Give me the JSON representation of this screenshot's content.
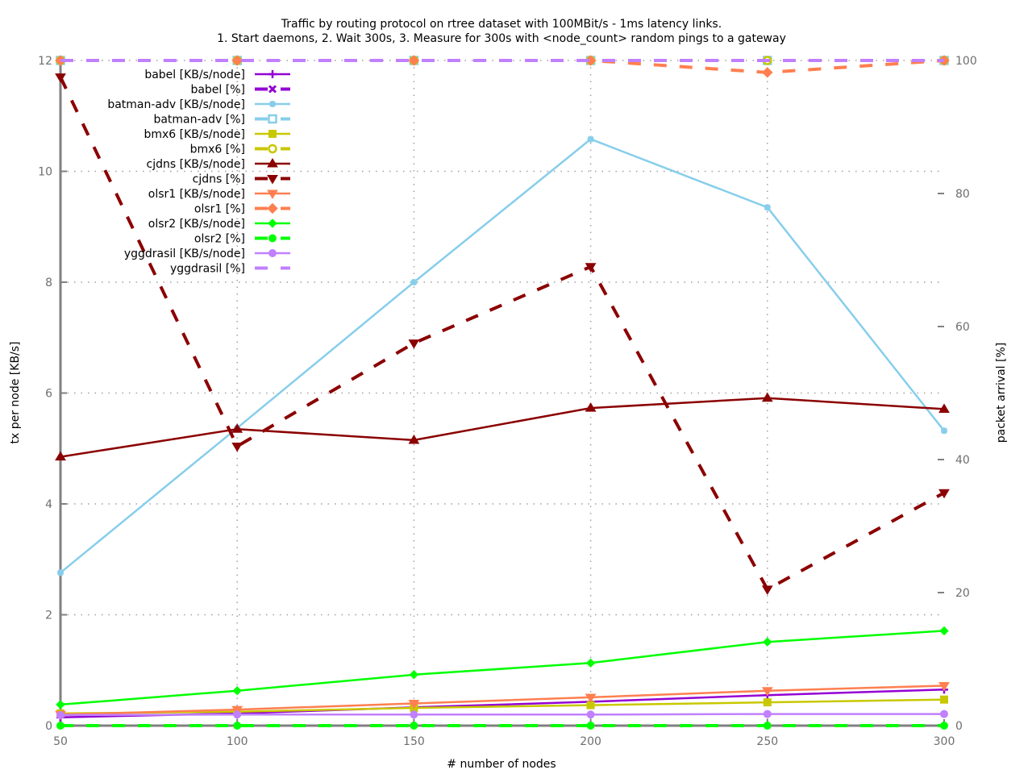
{
  "chart_data": {
    "type": "line",
    "title": "Traffic by routing protocol on rtree dataset with 100MBit/s - 1ms latency links.",
    "subtitle": "1. Start daemons, 2. Wait 300s, 3. Measure for 300s with <node_count> random pings to a gateway",
    "xlabel": "# number of nodes",
    "ylabel": "tx per node [KB/s]",
    "y2label": "packet arrival [%]",
    "xlim": [
      50,
      300
    ],
    "ylim": [
      0,
      12
    ],
    "y2lim": [
      0,
      100
    ],
    "x_ticks": [
      50,
      100,
      150,
      200,
      250,
      300
    ],
    "y_ticks": [
      0,
      2,
      4,
      6,
      8,
      10,
      12
    ],
    "y2_ticks": [
      0,
      20,
      40,
      60,
      80,
      100
    ],
    "grid": true,
    "legend_position": "top-left",
    "x": [
      50,
      100,
      150,
      200,
      250,
      300
    ],
    "series": [
      {
        "name": "babel [KB/s/node]",
        "axis": "y",
        "color": "#9400d3",
        "dash": false,
        "marker": "plus",
        "values": [
          0.15,
          0.22,
          0.33,
          0.43,
          0.55,
          0.65
        ]
      },
      {
        "name": "babel [%]",
        "axis": "y2",
        "color": "#9400d3",
        "dash": true,
        "marker": "x",
        "values": [
          100,
          100,
          100,
          100,
          100,
          100
        ]
      },
      {
        "name": "batman-adv [KB/s/node]",
        "axis": "y",
        "color": "#87ceeb",
        "dash": false,
        "marker": "star",
        "values": [
          2.76,
          5.37,
          8.0,
          10.58,
          9.35,
          5.32
        ]
      },
      {
        "name": "batman-adv [%]",
        "axis": "y2",
        "color": "#87ceeb",
        "dash": true,
        "marker": "box",
        "values": [
          100,
          100,
          100,
          100,
          100,
          100
        ]
      },
      {
        "name": "bmx6 [KB/s/node]",
        "axis": "y",
        "color": "#c8c800",
        "dash": false,
        "marker": "fbox",
        "values": [
          0.22,
          0.25,
          0.32,
          0.37,
          0.42,
          0.47
        ]
      },
      {
        "name": "bmx6 [%]",
        "axis": "y2",
        "color": "#c8c800",
        "dash": true,
        "marker": "circle",
        "values": [
          100,
          100,
          100,
          100,
          100,
          100
        ]
      },
      {
        "name": "cjdns [KB/s/node]",
        "axis": "y",
        "color": "#8b0000",
        "dash": false,
        "marker": "triangle",
        "values": [
          4.85,
          5.35,
          5.15,
          5.73,
          5.91,
          5.71
        ]
      },
      {
        "name": "cjdns [%]",
        "axis": "y2",
        "color": "#8b0000",
        "dash": true,
        "marker": "triangle-down",
        "values": [
          97.5,
          42,
          57.5,
          69,
          20.5,
          35
        ]
      },
      {
        "name": "olsr1 [KB/s/node]",
        "axis": "y",
        "color": "#ff7f50",
        "dash": false,
        "marker": "triangle-down",
        "values": [
          0.2,
          0.29,
          0.4,
          0.51,
          0.63,
          0.72
        ]
      },
      {
        "name": "olsr1 [%]",
        "axis": "y2",
        "color": "#ff7f50",
        "dash": true,
        "marker": "diamond",
        "values": [
          100,
          100,
          100,
          100,
          98.2,
          100
        ]
      },
      {
        "name": "olsr2 [KB/s/node]",
        "axis": "y",
        "color": "#00ff00",
        "dash": false,
        "marker": "fdiamond",
        "values": [
          0.38,
          0.63,
          0.92,
          1.13,
          1.51,
          1.71
        ]
      },
      {
        "name": "olsr2 [%]",
        "axis": "y2",
        "color": "#00ff00",
        "dash": true,
        "marker": "fcircle",
        "values": [
          0,
          0,
          0,
          0,
          0,
          0
        ]
      },
      {
        "name": "yggdrasil [KB/s/node]",
        "axis": "y",
        "color": "#c080ff",
        "dash": false,
        "marker": "fcircle",
        "values": [
          0.19,
          0.2,
          0.2,
          0.2,
          0.21,
          0.21
        ]
      },
      {
        "name": "yggdrasil [%]",
        "axis": "y2",
        "color": "#c080ff",
        "dash": true,
        "marker": "none",
        "values": [
          100,
          100,
          100,
          100,
          100,
          100
        ]
      }
    ]
  }
}
